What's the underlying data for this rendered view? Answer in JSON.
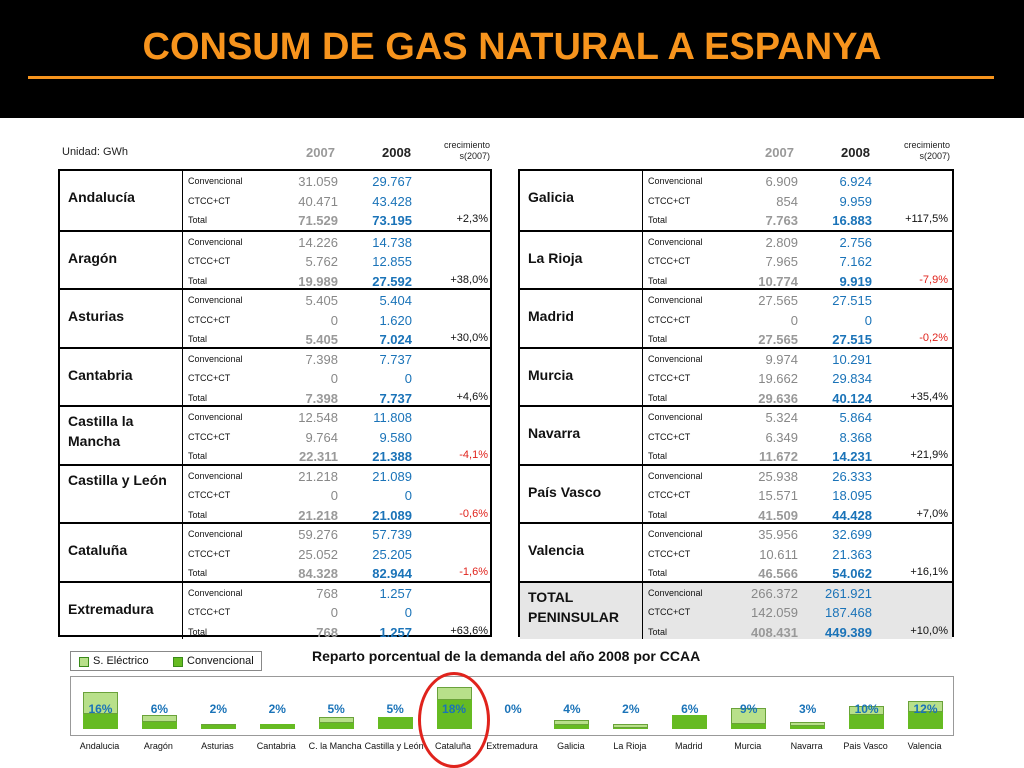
{
  "title": "CONSUM DE GAS NATURAL A ESPANYA",
  "unit_label": "Unidad: GWh",
  "year_2007": "2007",
  "year_2008": "2008",
  "growth_header_1": "crecimiento",
  "growth_header_2": "s(2007)",
  "row_labels": {
    "conv": "Convencional",
    "ctcc": "CTCC+CT",
    "total": "Total"
  },
  "left_regions": [
    {
      "name": "Andalucía",
      "conv07": "31.059",
      "conv08": "29.767",
      "ctcc07": "40.471",
      "ctcc08": "43.428",
      "tot07": "71.529",
      "tot08": "73.195",
      "growth": "+2,3%",
      "neg": false
    },
    {
      "name": "Aragón",
      "conv07": "14.226",
      "conv08": "14.738",
      "ctcc07": "5.762",
      "ctcc08": "12.855",
      "tot07": "19.989",
      "tot08": "27.592",
      "growth": "+38,0%",
      "neg": false
    },
    {
      "name": "Asturias",
      "conv07": "5.405",
      "conv08": "5.404",
      "ctcc07": "0",
      "ctcc08": "1.620",
      "tot07": "5.405",
      "tot08": "7.024",
      "growth": "+30,0%",
      "neg": false
    },
    {
      "name": "Cantabria",
      "conv07": "7.398",
      "conv08": "7.737",
      "ctcc07": "0",
      "ctcc08": "0",
      "tot07": "7.398",
      "tot08": "7.737",
      "growth": "+4,6%",
      "neg": false
    },
    {
      "name": "Castilla la Mancha",
      "conv07": "12.548",
      "conv08": "11.808",
      "ctcc07": "9.764",
      "ctcc08": "9.580",
      "tot07": "22.311",
      "tot08": "21.388",
      "growth": "-4,1%",
      "neg": true
    },
    {
      "name": "Castilla y León",
      "conv07": "21.218",
      "conv08": "21.089",
      "ctcc07": "0",
      "ctcc08": "0",
      "tot07": "21.218",
      "tot08": "21.089",
      "growth": "-0,6%",
      "neg": true
    },
    {
      "name": "Cataluña",
      "conv07": "59.276",
      "conv08": "57.739",
      "ctcc07": "25.052",
      "ctcc08": "25.205",
      "tot07": "84.328",
      "tot08": "82.944",
      "growth": "-1,6%",
      "neg": true
    },
    {
      "name": "Extremadura",
      "conv07": "768",
      "conv08": "1.257",
      "ctcc07": "0",
      "ctcc08": "0",
      "tot07": "768",
      "tot08": "1.257",
      "growth": "+63,6%",
      "neg": false
    }
  ],
  "right_regions": [
    {
      "name": "Galicia",
      "conv07": "6.909",
      "conv08": "6.924",
      "ctcc07": "854",
      "ctcc08": "9.959",
      "tot07": "7.763",
      "tot08": "16.883",
      "growth": "+117,5%",
      "neg": false
    },
    {
      "name": "La Rioja",
      "conv07": "2.809",
      "conv08": "2.756",
      "ctcc07": "7.965",
      "ctcc08": "7.162",
      "tot07": "10.774",
      "tot08": "9.919",
      "growth": "-7,9%",
      "neg": true
    },
    {
      "name": "Madrid",
      "conv07": "27.565",
      "conv08": "27.515",
      "ctcc07": "0",
      "ctcc08": "0",
      "tot07": "27.565",
      "tot08": "27.515",
      "growth": "-0,2%",
      "neg": true
    },
    {
      "name": "Murcia",
      "conv07": "9.974",
      "conv08": "10.291",
      "ctcc07": "19.662",
      "ctcc08": "29.834",
      "tot07": "29.636",
      "tot08": "40.124",
      "growth": "+35,4%",
      "neg": false
    },
    {
      "name": "Navarra",
      "conv07": "5.324",
      "conv08": "5.864",
      "ctcc07": "6.349",
      "ctcc08": "8.368",
      "tot07": "11.672",
      "tot08": "14.231",
      "growth": "+21,9%",
      "neg": false
    },
    {
      "name": "País Vasco",
      "conv07": "25.938",
      "conv08": "26.333",
      "ctcc07": "15.571",
      "ctcc08": "18.095",
      "tot07": "41.509",
      "tot08": "44.428",
      "growth": "+7,0%",
      "neg": false
    },
    {
      "name": "Valencia",
      "conv07": "35.956",
      "conv08": "32.699",
      "ctcc07": "10.611",
      "ctcc08": "21.363",
      "tot07": "46.566",
      "tot08": "54.062",
      "growth": "+16,1%",
      "neg": false
    },
    {
      "name": "TOTAL PENINSULAR",
      "conv07": "266.372",
      "conv08": "261.921",
      "ctcc07": "142.059",
      "ctcc08": "187.468",
      "tot07": "408.431",
      "tot08": "449.389",
      "growth": "+10,0%",
      "neg": false,
      "shaded": true
    }
  ],
  "legend": {
    "electric": "S. Eléctrico",
    "conventional": "Convencional"
  },
  "chart_data": {
    "type": "bar",
    "title": "Reparto porcentual de la demanda del año 2008 por CCAA",
    "categories": [
      "Andalucia",
      "Aragón",
      "Asturias",
      "Cantabria",
      "C. la Mancha",
      "Castilla y León",
      "Cataluña",
      "Extremadura",
      "Galicia",
      "La Rioja",
      "Madrid",
      "Murcia",
      "Navarra",
      "Pais Vasco",
      "Valencia"
    ],
    "labels": [
      "16%",
      "6%",
      "2%",
      "2%",
      "5%",
      "5%",
      "18%",
      "0%",
      "4%",
      "2%",
      "6%",
      "9%",
      "3%",
      "10%",
      "12%"
    ],
    "values": [
      16,
      6,
      2,
      2,
      5,
      5,
      18,
      0,
      4,
      2,
      6,
      9,
      3,
      10,
      12
    ],
    "conventional_share": [
      0.41,
      0.53,
      0.77,
      1,
      0.55,
      1,
      0.7,
      1,
      0.41,
      0.28,
      1,
      0.26,
      0.41,
      0.59,
      0.6
    ],
    "highlighted": "Cataluña",
    "colors": {
      "electric": "#b8e08a",
      "conventional": "#66bb22",
      "label_blue": "#1a73b8",
      "highlight": "#e0231c"
    }
  }
}
